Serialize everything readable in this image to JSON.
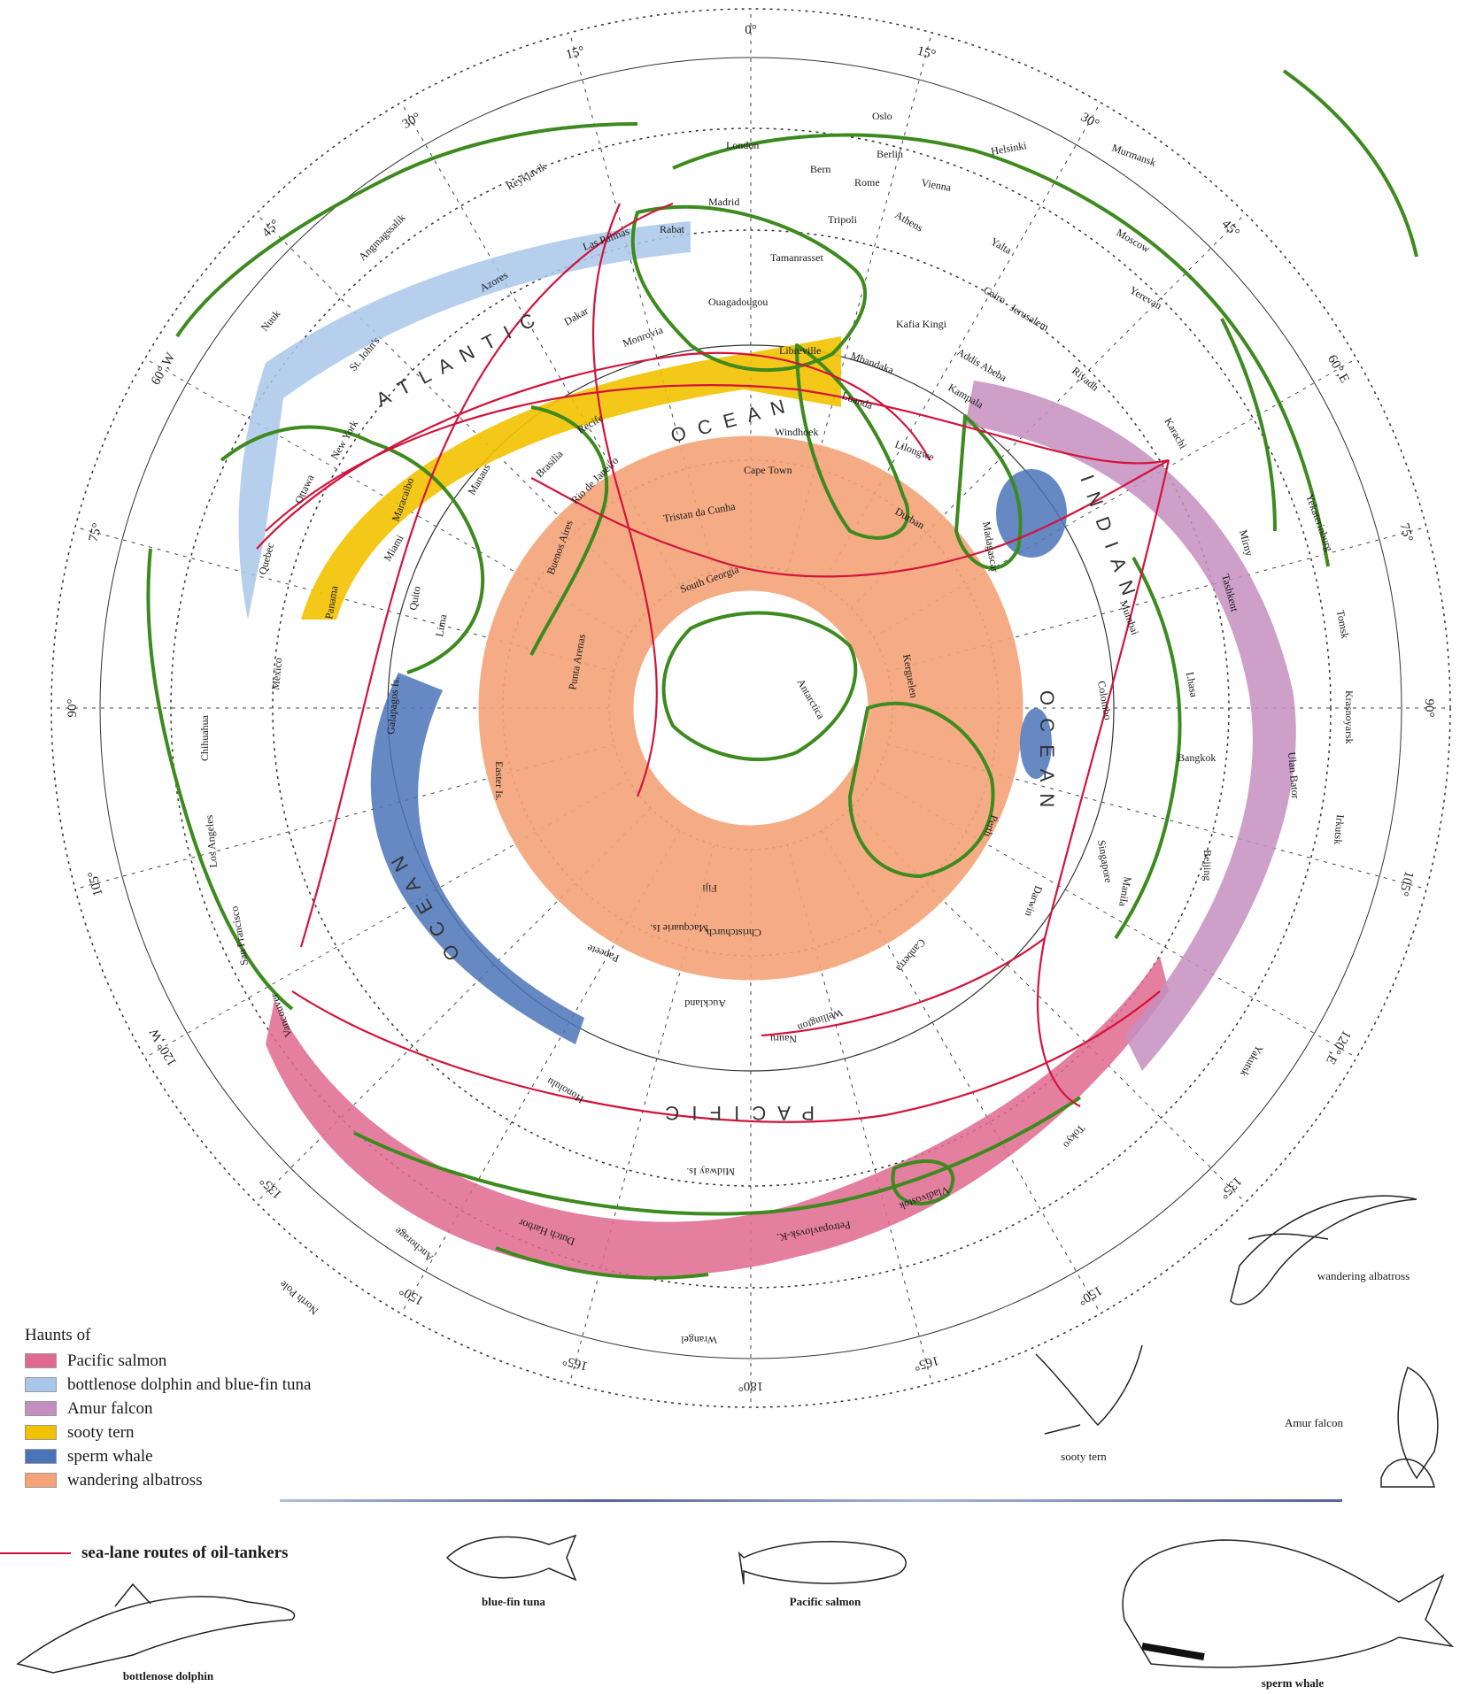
{
  "legend": {
    "title": "Haunts of",
    "items": [
      {
        "label": "Pacific salmon",
        "color": "#e0698f"
      },
      {
        "label": "bottlenose dolphin and blue-fin tuna",
        "color": "#a9c7ea"
      },
      {
        "label": "Amur falcon",
        "color": "#c58ec0"
      },
      {
        "label": "sooty tern",
        "color": "#f2c200"
      },
      {
        "label": "sperm whale",
        "color": "#4b73b8"
      },
      {
        "label": "wandering albatross",
        "color": "#f4a378"
      }
    ],
    "route_label": "sea-lane routes of oil-tankers",
    "route_color": "#d2143c"
  },
  "animals": {
    "wandering_albatross": "wandering albatross",
    "sooty_tern": "sooty tern",
    "amur_falcon": "Amur falcon",
    "blue_fin_tuna": "blue-fin tuna",
    "pacific_salmon": "Pacific salmon",
    "bottlenose_dolphin": "bottlenose dolphin",
    "sperm_whale": "sperm whale"
  },
  "degrees": {
    "d0": "0°",
    "d15e": "15°",
    "d30e": "30°",
    "d45e": "45°",
    "d60e": "60°,E",
    "d75e": "75°",
    "d90e": "90°",
    "d105e": "105°",
    "d120e": "120°,E",
    "d135e": "135°",
    "d150e": "150°",
    "d165e": "165°",
    "d180": "180°",
    "d165w": "165°",
    "d150w": "150°",
    "d135w": "135°",
    "d120w": "120°,W",
    "d105w": "105°",
    "d90w": "90°",
    "d75w": "75°",
    "d60w": "60°,W",
    "d45w": "45°",
    "d30w": "30°",
    "d15w": "15°"
  },
  "oceans": {
    "atlantic": "A T L A N T I C",
    "atlantic_ocean": "O C E A N",
    "indian": "I N D I A N",
    "indian_ocean": "O C E A N",
    "pacific": "P A C I F I C",
    "pacific_ocean": "O C E A N"
  },
  "places": {
    "oslo": "Oslo",
    "london": "London",
    "berlin": "Berlin",
    "helsinki": "Helsinki",
    "murmansk": "Murmansk",
    "bern": "Bern",
    "rome": "Rome",
    "vienna": "Vienna",
    "madrid": "Madrid",
    "tripoli": "Tripoli",
    "athens": "Athens",
    "yalta": "Yalta",
    "moscow": "Moscow",
    "rabat": "Rabat",
    "tamanrasset": "Tamanrasset",
    "las_palmas": "Las Palmas",
    "ouagadougou": "Ouagadougou",
    "cairo": "Cairo",
    "jerusalem": "Jerusalem",
    "yerevan": "Yerevan",
    "kafia_kingi": "Kafia Kingi",
    "addis_abeba": "Addis Abeba",
    "mbandaka": "Mbandaka",
    "libreville": "Libreville",
    "monrovia": "Monrovia",
    "dakar": "Dakar",
    "luanda": "Luanda",
    "kampala": "Kampala",
    "riyadh": "Riyadh",
    "karachi": "Karachi",
    "windhoek": "Windhoek",
    "lilongwe": "Lilongwe",
    "cape_town": "Cape Town",
    "durban": "Durban",
    "madagascar": "Madagascar",
    "reykjavik": "Reykjavik",
    "angmagssalik": "Angmagssalik",
    "azores": "Azores",
    "nuuk": "Nuuk",
    "st_johns": "St. John's",
    "new_york": "New York",
    "ottawa": "Ottawa",
    "quebec": "Quebec",
    "miami": "Miami",
    "recife": "Recife",
    "brasilia": "Brasilia",
    "manaus": "Manaus",
    "rio": "Rio de Janeiro",
    "tristan": "Tristan da Cunha",
    "buenos_aires": "Buenos Aires",
    "south_georgia": "South Georgia",
    "maracaibo": "Maracaibo",
    "quito": "Quito",
    "lima": "Lima",
    "panama": "Panama",
    "mexico": "Mexico",
    "galapagos": "Galapagos Is.",
    "easter_is": "Easter Is.",
    "punta_arenas": "Punta Arenas",
    "antarctica": "Antarctica",
    "kerguelen": "Kerguelen",
    "yekaterinburg": "Yekaterinburg",
    "tomsk": "Tomsk",
    "mirny": "Mirny",
    "tashkent": "Tashkent",
    "lhasa": "Lhasa",
    "mumbai": "Mumbai",
    "colombo": "Colombo",
    "bangkok": "Bangkok",
    "singapore": "Singapore",
    "ulan_bator": "Ulan Bator",
    "beijing": "Beijing",
    "krasnoyarsk": "Krasnoyarsk",
    "irkutsk": "Irkutsk",
    "yakutsk": "Yakutsk",
    "manila": "Manila",
    "perth": "Perth",
    "darwin": "Darwin",
    "canberra": "Canberra",
    "wellington": "Wellington",
    "auckland": "Auckland",
    "fiji": "Fiji",
    "honolulu": "Honolulu",
    "midway": "Midway Is.",
    "anchorage": "Anchorage",
    "north_pole": "North Pole",
    "vancouver": "Vancouver",
    "san_francisco": "San Francisco",
    "los_angeles": "Los Angeles",
    "chihuahua": "Chihuahua",
    "vladivostok": "Vladivostok",
    "tokyo": "Tokyo",
    "wrangel": "Wrangel",
    "dutch_harbor": "Dutch Harbor",
    "petropavlovsk": "Petropavlovsk-K.",
    "nauru": "Nauru",
    "papeete": "Papeete",
    "christchurch": "Christchurch",
    "macquarie": "Macquarie Is."
  }
}
